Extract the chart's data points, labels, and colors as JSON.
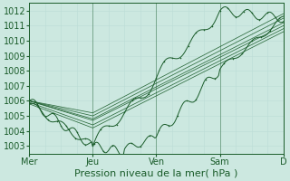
{
  "xlabel": "Pression niveau de la mer( hPa )",
  "ylim": [
    1002.5,
    1012.5
  ],
  "yticks": [
    1003,
    1004,
    1005,
    1006,
    1007,
    1008,
    1009,
    1010,
    1011,
    1012
  ],
  "xtick_labels": [
    "Mer",
    "Jeu",
    "Ven",
    "Sam",
    "D"
  ],
  "xtick_positions": [
    0,
    48,
    96,
    144,
    192
  ],
  "xlim": [
    0,
    192
  ],
  "bg_color": "#cce8e0",
  "grid_major_color": "#aaccC4",
  "grid_minor_color": "#bbddd6",
  "line_color": "#1a5c2a",
  "n_points": 193,
  "days": 4,
  "hours_per_day": 48,
  "label_fontsize": 7,
  "xlabel_fontsize": 8
}
